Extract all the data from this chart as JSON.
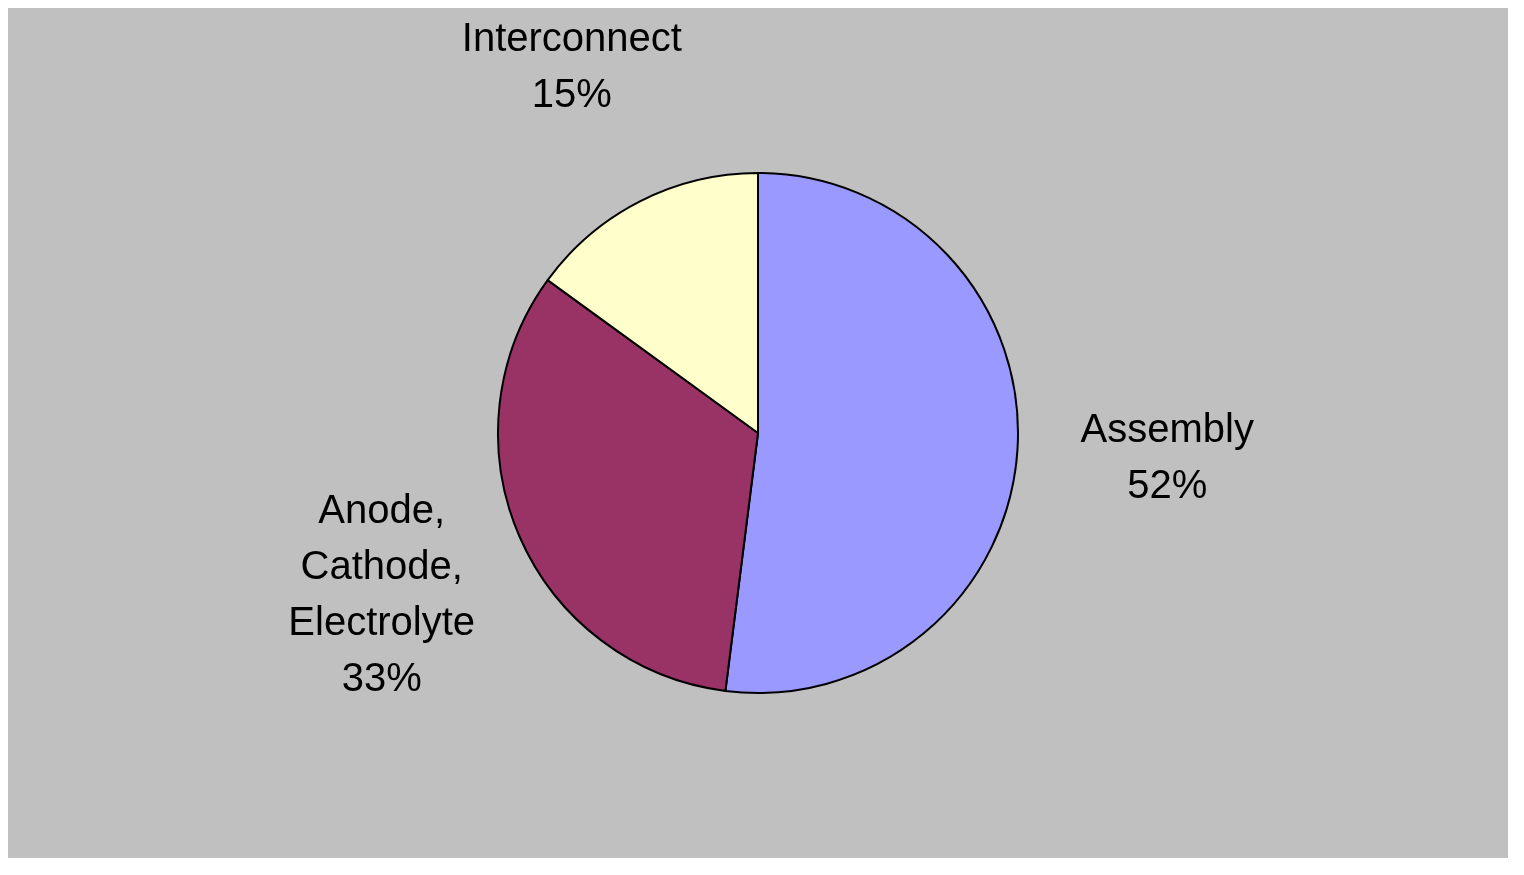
{
  "chart_data": {
    "type": "pie",
    "categories": [
      "Assembly",
      "Anode, Cathode, Electrolyte",
      "Interconnect"
    ],
    "values": [
      52,
      33,
      15
    ],
    "value_labels": [
      "52%",
      "33%",
      "15%"
    ],
    "colors": [
      "#9999ff",
      "#993366",
      "#ffffcc"
    ],
    "legend": false
  }
}
